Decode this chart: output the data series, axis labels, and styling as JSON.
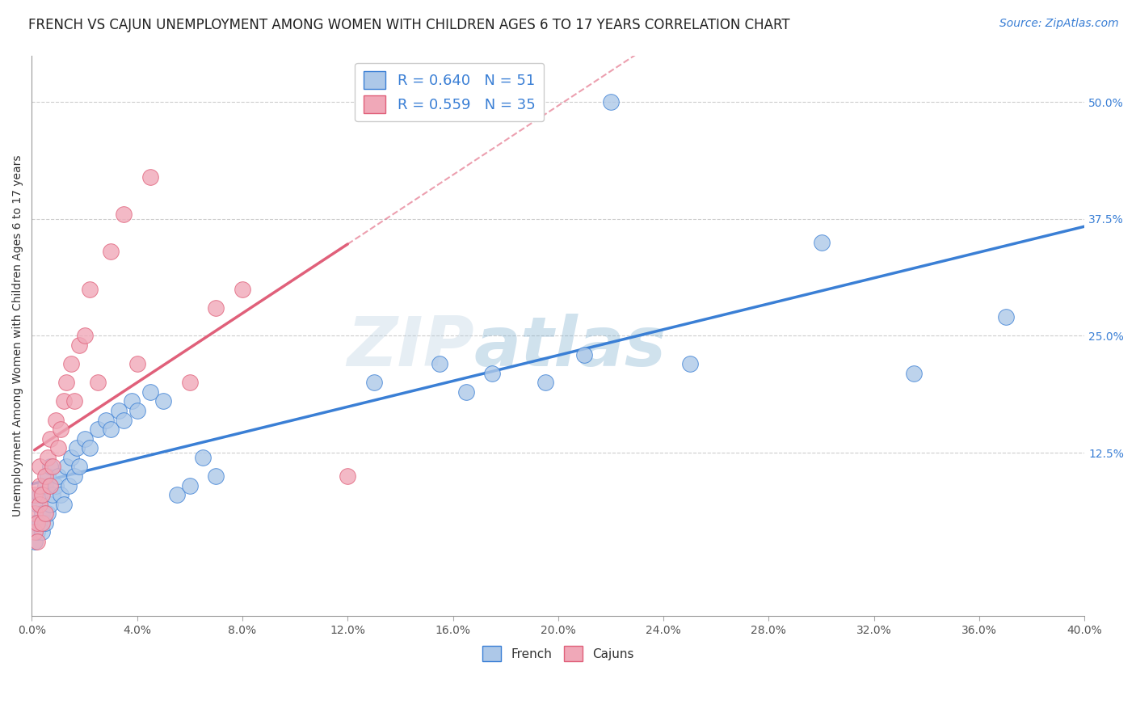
{
  "title": "FRENCH VS CAJUN UNEMPLOYMENT AMONG WOMEN WITH CHILDREN AGES 6 TO 17 YEARS CORRELATION CHART",
  "source": "Source: ZipAtlas.com",
  "ylabel": "Unemployment Among Women with Children Ages 6 to 17 years",
  "watermark_zip": "ZIP",
  "watermark_atlas": "atlas",
  "xlim": [
    0.0,
    0.4
  ],
  "ylim": [
    -0.05,
    0.55
  ],
  "xticks": [
    0.0,
    0.04,
    0.08,
    0.12,
    0.16,
    0.2,
    0.24,
    0.28,
    0.32,
    0.36,
    0.4
  ],
  "yticks_right": [
    0.125,
    0.25,
    0.375,
    0.5
  ],
  "ytick_labels_right": [
    "12.5%",
    "25.0%",
    "37.5%",
    "50.0%"
  ],
  "xtick_labels": [
    "0.0%",
    "4.0%",
    "8.0%",
    "12.0%",
    "16.0%",
    "20.0%",
    "24.0%",
    "28.0%",
    "32.0%",
    "36.0%",
    "40.0%"
  ],
  "french_R": 0.64,
  "french_N": 51,
  "cajun_R": 0.559,
  "cajun_N": 35,
  "french_color": "#adc8e8",
  "cajun_color": "#f0a8b8",
  "french_line_color": "#3a7fd5",
  "cajun_line_color": "#e0607a",
  "legend_french_label": "R = 0.640   N = 51",
  "legend_cajun_label": "R = 0.559   N = 35",
  "french_x": [
    0.001,
    0.001,
    0.002,
    0.002,
    0.003,
    0.003,
    0.004,
    0.004,
    0.005,
    0.005,
    0.006,
    0.006,
    0.007,
    0.007,
    0.008,
    0.009,
    0.01,
    0.011,
    0.012,
    0.013,
    0.014,
    0.015,
    0.016,
    0.017,
    0.018,
    0.02,
    0.022,
    0.025,
    0.028,
    0.03,
    0.033,
    0.035,
    0.038,
    0.04,
    0.045,
    0.05,
    0.055,
    0.06,
    0.065,
    0.07,
    0.13,
    0.155,
    0.165,
    0.175,
    0.195,
    0.21,
    0.22,
    0.25,
    0.3,
    0.335,
    0.37
  ],
  "french_y": [
    0.03,
    0.05,
    0.04,
    0.07,
    0.05,
    0.08,
    0.04,
    0.06,
    0.05,
    0.09,
    0.06,
    0.1,
    0.07,
    0.11,
    0.08,
    0.09,
    0.1,
    0.08,
    0.07,
    0.11,
    0.09,
    0.12,
    0.1,
    0.13,
    0.11,
    0.14,
    0.13,
    0.15,
    0.16,
    0.15,
    0.17,
    0.16,
    0.18,
    0.17,
    0.19,
    0.18,
    0.08,
    0.09,
    0.12,
    0.1,
    0.2,
    0.22,
    0.19,
    0.21,
    0.2,
    0.23,
    0.5,
    0.22,
    0.35,
    0.21,
    0.27
  ],
  "cajun_x": [
    0.001,
    0.001,
    0.001,
    0.002,
    0.002,
    0.003,
    0.003,
    0.003,
    0.004,
    0.004,
    0.005,
    0.005,
    0.006,
    0.007,
    0.007,
    0.008,
    0.009,
    0.01,
    0.011,
    0.012,
    0.013,
    0.015,
    0.016,
    0.018,
    0.02,
    0.022,
    0.025,
    0.03,
    0.035,
    0.04,
    0.045,
    0.06,
    0.07,
    0.08,
    0.12
  ],
  "cajun_y": [
    0.04,
    0.06,
    0.08,
    0.03,
    0.05,
    0.07,
    0.09,
    0.11,
    0.05,
    0.08,
    0.06,
    0.1,
    0.12,
    0.09,
    0.14,
    0.11,
    0.16,
    0.13,
    0.15,
    0.18,
    0.2,
    0.22,
    0.18,
    0.24,
    0.25,
    0.3,
    0.2,
    0.34,
    0.38,
    0.22,
    0.42,
    0.2,
    0.28,
    0.3,
    0.1
  ],
  "grid_color": "#cccccc",
  "background_color": "#ffffff",
  "title_fontsize": 12,
  "axis_label_fontsize": 10,
  "tick_fontsize": 10,
  "legend_fontsize": 13,
  "source_fontsize": 10
}
